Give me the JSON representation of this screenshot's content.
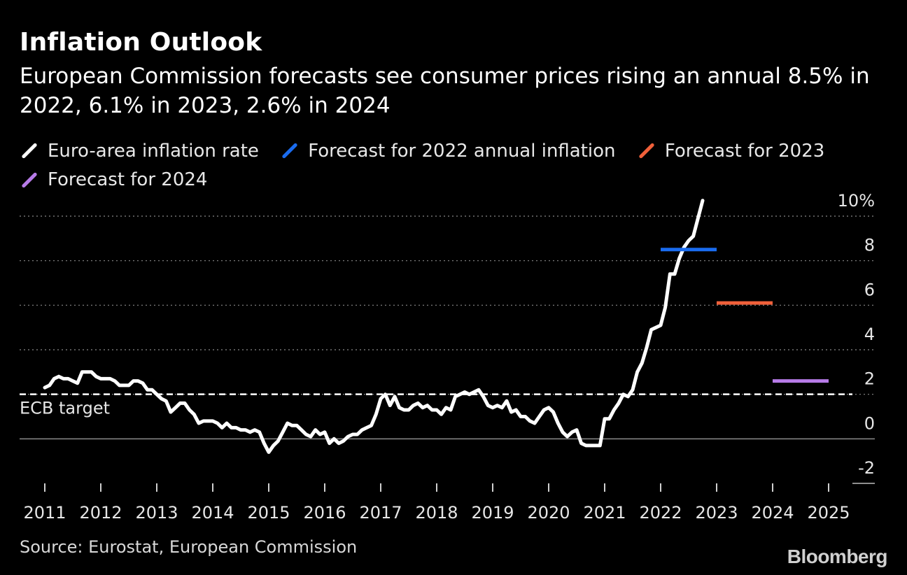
{
  "header": {
    "title": "Inflation Outlook",
    "subtitle": "European Commission forecasts see consumer prices rising an annual 8.5% in 2022, 6.1% in 2023, 2.6% in 2024"
  },
  "legend": [
    {
      "label": "Euro-area inflation rate",
      "color": "#ffffff"
    },
    {
      "label": "Forecast for 2022 annual inflation",
      "color": "#1a6cf0"
    },
    {
      "label": "Forecast for 2023",
      "color": "#f0603a"
    },
    {
      "label": "Forecast for 2024",
      "color": "#b77be8"
    }
  ],
  "footer": {
    "source": "Source: Eurostat, European Commission",
    "brand": "Bloomberg"
  },
  "chart_data": {
    "type": "line",
    "title": "Inflation Outlook",
    "xlim": [
      2011,
      2025.5
    ],
    "ylim": [
      -2,
      10
    ],
    "y_ticks": [
      {
        "value": 10,
        "label": "10%"
      },
      {
        "value": 8,
        "label": "8"
      },
      {
        "value": 6,
        "label": "6"
      },
      {
        "value": 4,
        "label": "4"
      },
      {
        "value": 2,
        "label": "2"
      },
      {
        "value": 0,
        "label": "0"
      },
      {
        "value": -2,
        "label": "-2"
      }
    ],
    "x_ticks": [
      2011,
      2012,
      2013,
      2014,
      2015,
      2016,
      2017,
      2018,
      2019,
      2020,
      2021,
      2022,
      2023,
      2024,
      2025
    ],
    "reference_line": {
      "value": 2.0,
      "label": "ECB target"
    },
    "series": [
      {
        "name": "Euro-area inflation rate",
        "color": "#ffffff",
        "start_year": 2011,
        "step": 0.08333,
        "values": [
          2.3,
          2.4,
          2.7,
          2.8,
          2.7,
          2.7,
          2.6,
          2.5,
          3.0,
          3.0,
          3.0,
          2.8,
          2.7,
          2.7,
          2.7,
          2.6,
          2.4,
          2.4,
          2.4,
          2.6,
          2.6,
          2.5,
          2.2,
          2.2,
          2.0,
          1.8,
          1.7,
          1.2,
          1.4,
          1.6,
          1.6,
          1.3,
          1.1,
          0.7,
          0.8,
          0.8,
          0.8,
          0.7,
          0.5,
          0.7,
          0.5,
          0.5,
          0.4,
          0.4,
          0.3,
          0.4,
          0.3,
          -0.2,
          -0.6,
          -0.3,
          -0.1,
          0.3,
          0.7,
          0.6,
          0.6,
          0.4,
          0.2,
          0.1,
          0.4,
          0.2,
          0.3,
          -0.2,
          0.0,
          -0.2,
          -0.1,
          0.1,
          0.2,
          0.2,
          0.4,
          0.5,
          0.6,
          1.1,
          1.8,
          2.0,
          1.5,
          1.9,
          1.4,
          1.3,
          1.3,
          1.5,
          1.6,
          1.4,
          1.5,
          1.3,
          1.3,
          1.1,
          1.4,
          1.3,
          1.9,
          2.0,
          2.1,
          2.0,
          2.1,
          2.2,
          1.9,
          1.5,
          1.4,
          1.5,
          1.4,
          1.7,
          1.2,
          1.3,
          1.0,
          1.0,
          0.8,
          0.7,
          1.0,
          1.3,
          1.4,
          1.2,
          0.7,
          0.3,
          0.1,
          0.3,
          0.4,
          -0.2,
          -0.3,
          -0.3,
          -0.3,
          -0.3,
          0.9,
          0.9,
          1.3,
          1.6,
          2.0,
          1.9,
          2.2,
          3.0,
          3.4,
          4.1,
          4.9,
          5.0,
          5.1,
          5.9,
          7.4,
          7.4,
          8.1,
          8.6,
          8.9,
          9.1,
          9.9,
          10.7
        ]
      },
      {
        "name": "Forecast for 2022 annual inflation",
        "color": "#1a6cf0",
        "x_range": [
          2022,
          2023
        ],
        "values": [
          8.5,
          8.5
        ]
      },
      {
        "name": "Forecast for 2023",
        "color": "#f0603a",
        "x_range": [
          2023,
          2024
        ],
        "values": [
          6.1,
          6.1
        ]
      },
      {
        "name": "Forecast for 2024",
        "color": "#b77be8",
        "x_range": [
          2024,
          2025
        ],
        "values": [
          2.6,
          2.6
        ]
      }
    ]
  }
}
